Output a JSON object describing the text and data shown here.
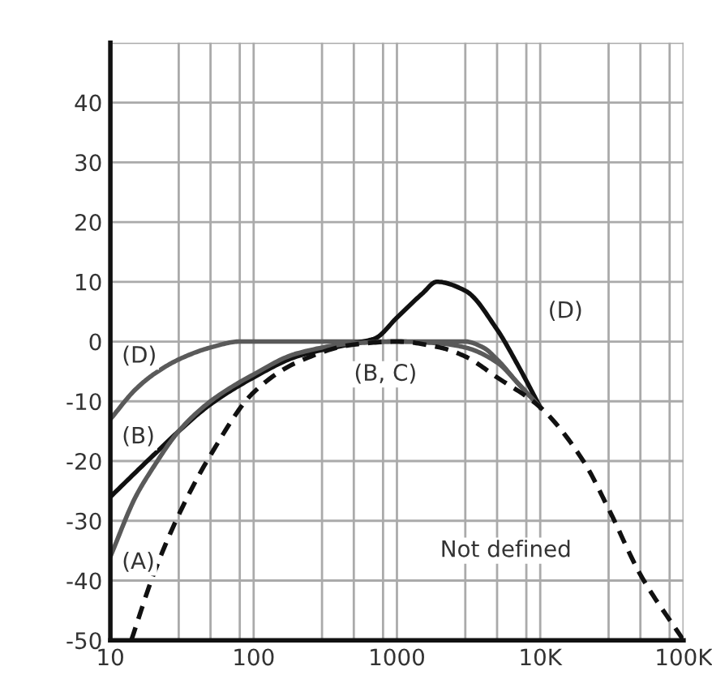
{
  "chart_data": {
    "type": "line",
    "log": "x",
    "grid": true,
    "marker": "none",
    "xlim": [
      10,
      100000
    ],
    "ylim": [
      -50,
      50
    ],
    "xticks": [
      10,
      {
        "value": 30,
        "label": null
      },
      {
        "value": 50,
        "label": null
      },
      {
        "value": 80,
        "label": null
      },
      100,
      {
        "value": 300,
        "label": null
      },
      {
        "value": 500,
        "label": null
      },
      {
        "value": 800,
        "label": null
      },
      1000,
      {
        "value": 3000,
        "label": null
      },
      {
        "value": 5000,
        "label": null
      },
      {
        "value": 8000,
        "label": null
      },
      {
        "value": 10000,
        "label": "10K"
      },
      {
        "value": 30000,
        "label": null
      },
      {
        "value": 50000,
        "label": null
      },
      {
        "value": 80000,
        "label": null
      },
      {
        "value": 100000,
        "label": "100K"
      }
    ],
    "yticks": [
      -50,
      -40,
      -30,
      -20,
      -10,
      0,
      10,
      20,
      30,
      40
    ],
    "series": [
      {
        "color": "#5a5a5a",
        "line_style": "solid",
        "x": [
          10,
          15,
          20,
          30,
          50,
          80,
          100,
          1000,
          3000,
          4000,
          5000,
          7000,
          10000
        ],
        "values": [
          -13,
          -8,
          -5.5,
          -3,
          -1,
          0,
          0,
          0,
          0,
          -1,
          -3,
          -7,
          -11
        ]
      },
      {
        "color": "#111111",
        "line_style": "solid",
        "x": [
          10,
          20,
          30,
          50,
          100,
          200,
          500,
          700,
          1000,
          1500,
          1900,
          3000,
          5000,
          7000,
          10000
        ],
        "values": [
          -26,
          -19,
          -15,
          -10.5,
          -6,
          -2.5,
          -0.3,
          0.5,
          4,
          8,
          10,
          8.5,
          2,
          -4,
          -11
        ]
      },
      {
        "color": "#5a5a5a",
        "line_style": "solid",
        "x": [
          10,
          15,
          20,
          30,
          50,
          100,
          200,
          500,
          1000,
          2000,
          3000,
          5000,
          7000,
          10000
        ],
        "values": [
          -36,
          -26,
          -21,
          -15,
          -10,
          -5.5,
          -2,
          -0.3,
          0,
          -0.3,
          -1,
          -3.5,
          -7,
          -11
        ]
      },
      {
        "color": "#111111",
        "line_style": "dashed",
        "x": [
          14,
          20,
          30,
          50,
          100,
          200,
          500,
          1000,
          2000,
          3000,
          5000,
          10000,
          20000,
          30000,
          50000,
          100000
        ],
        "values": [
          -50,
          -39,
          -29,
          -19,
          -8.5,
          -3.5,
          -0.5,
          0,
          -1,
          -2.5,
          -6,
          -11,
          -20,
          -28,
          -39,
          -50
        ]
      }
    ],
    "annotations": [
      "(D)",
      "(B)",
      "(A)",
      "(D)",
      "(B, C)",
      "Not defined"
    ]
  }
}
